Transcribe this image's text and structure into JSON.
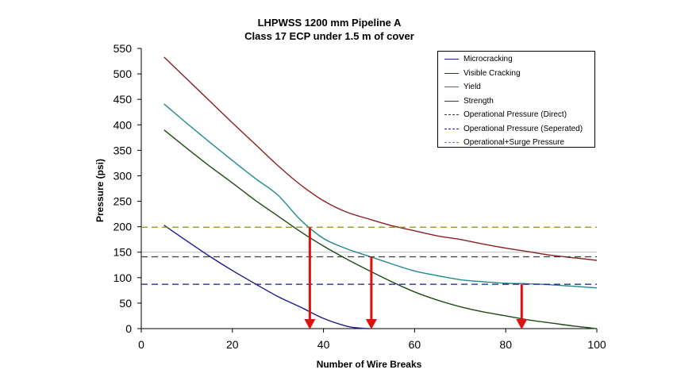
{
  "chart_data": {
    "type": "line",
    "title": "LHPWSS 1200 mm Pipeline A",
    "subtitle": "Class 17 ECP under 1.5 m of cover",
    "xlabel": "Number of Wire Breaks",
    "ylabel": "Pressure (psi)",
    "xlim": [
      0,
      100
    ],
    "ylim": [
      0,
      550
    ],
    "xticks": [
      0,
      20,
      40,
      60,
      80,
      100
    ],
    "yticks": [
      0,
      50,
      100,
      150,
      200,
      250,
      300,
      350,
      400,
      450,
      500,
      550
    ],
    "grid": false,
    "legend_position": "top-right",
    "series": [
      {
        "name": "Microcracking",
        "color": "#1a1a8c",
        "style": "solid",
        "x": [
          5,
          10,
          15,
          20,
          25,
          30,
          35,
          40,
          45,
          48,
          50
        ],
        "y": [
          203,
          172,
          142,
          114,
          88,
          63,
          42,
          20,
          5,
          1,
          0
        ]
      },
      {
        "name": "Visible Cracking",
        "color": "#1f4a14",
        "style": "solid",
        "x": [
          5,
          10,
          15,
          20,
          25,
          30,
          35,
          40,
          45,
          50,
          55,
          60,
          65,
          70,
          75,
          80,
          85,
          90,
          95,
          100
        ],
        "y": [
          390,
          354,
          319,
          286,
          252,
          221,
          190,
          162,
          137,
          114,
          92,
          72,
          56,
          43,
          33,
          25,
          17,
          11,
          5,
          0
        ]
      },
      {
        "name": "Yield",
        "color": "#1f8a8a",
        "style": "solid",
        "x": [
          5,
          10,
          15,
          20,
          25,
          30,
          35,
          40,
          45,
          50,
          55,
          60,
          65,
          70,
          75,
          80,
          85,
          90,
          95,
          100
        ],
        "y": [
          441,
          403,
          366,
          330,
          295,
          262,
          213,
          177,
          157,
          142,
          127,
          113,
          104,
          96,
          92,
          89,
          88,
          86,
          83,
          80
        ]
      },
      {
        "name": "Strength",
        "color": "#8c1f1f",
        "style": "solid",
        "x": [
          5,
          10,
          15,
          20,
          25,
          30,
          35,
          40,
          45,
          50,
          55,
          60,
          65,
          70,
          75,
          80,
          85,
          90,
          95,
          100
        ],
        "y": [
          533,
          490,
          447,
          404,
          362,
          320,
          282,
          251,
          229,
          215,
          202,
          192,
          182,
          175,
          166,
          158,
          151,
          144,
          139,
          134
        ]
      },
      {
        "name": "Operational Pressure (Direct)",
        "color": "#3a3a3a",
        "style": "dashed",
        "x": [
          0,
          100
        ],
        "y": [
          141,
          141
        ]
      },
      {
        "name": "Operational Pressure (Seperated)",
        "color": "#1a1a8c",
        "style": "dashed",
        "x": [
          0,
          100
        ],
        "y": [
          87,
          87
        ]
      },
      {
        "name": "Operational+Surge Pressure",
        "color": "#8c8c1a",
        "style": "dashed",
        "x": [
          0,
          100
        ],
        "y": [
          199,
          199
        ]
      }
    ],
    "annotations": [
      {
        "type": "arrow",
        "color": "#e01010",
        "x": 37,
        "y_from": 199,
        "y_to": 0
      },
      {
        "type": "arrow",
        "color": "#e01010",
        "x": 50.5,
        "y_from": 141,
        "y_to": 0
      },
      {
        "type": "arrow",
        "color": "#e01010",
        "x": 83.5,
        "y_from": 87,
        "y_to": 0
      }
    ],
    "reference_line": {
      "y": 150,
      "color": "#bbbbbb"
    }
  }
}
